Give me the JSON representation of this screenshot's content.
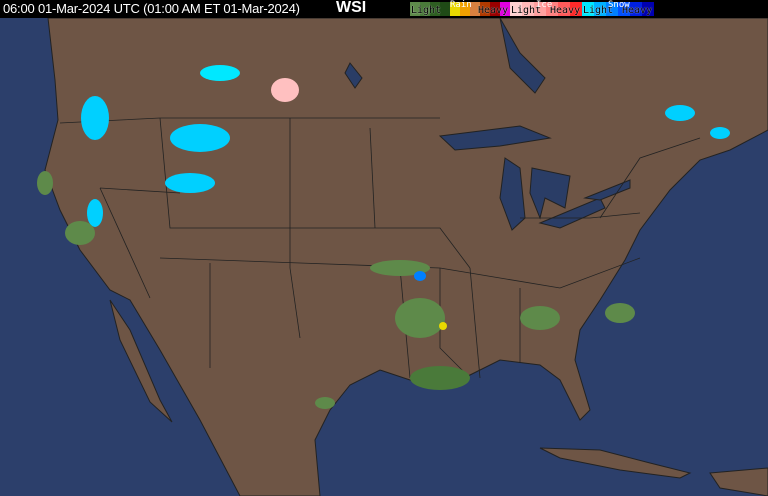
{
  "header": {
    "timestamp": "06:00 01-Mar-2024 UTC  (01:00 AM ET 01-Mar-2024)",
    "logo": "WSI"
  },
  "legend": {
    "rain": {
      "title": "Rain",
      "light": "Light",
      "heavy": "Heavy",
      "colors": [
        "#5e8a4a",
        "#4a7a3a",
        "#2e5e22",
        "#1f4a16",
        "#e8d800",
        "#f0a000",
        "#d88040",
        "#b03a00",
        "#9a0000",
        "#e000e0"
      ]
    },
    "ice": {
      "title": "Ice",
      "light": "Light",
      "heavy": "Heavy",
      "colors": [
        "#ffd0d0",
        "#ffb8b8",
        "#ffa0a0",
        "#ff8080",
        "#ff5a5a",
        "#ff2a2a"
      ]
    },
    "snow": {
      "title": "Snow",
      "light": "Light",
      "heavy": "Heavy",
      "colors": [
        "#00e8ff",
        "#00b0ff",
        "#0080ff",
        "#0050ff",
        "#0020e0",
        "#0000b0"
      ]
    }
  },
  "map": {
    "ocean_color": "#2c3f6b",
    "land_color": "#6e5545",
    "lake_color": "#2a3d66",
    "border_color": "#222222"
  }
}
